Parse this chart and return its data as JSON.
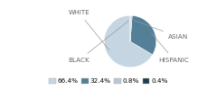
{
  "labels": [
    "WHITE",
    "HISPANIC",
    "ASIAN",
    "BLACK"
  ],
  "values": [
    66.4,
    32.4,
    0.8,
    0.4
  ],
  "colors": [
    "#c5d5e2",
    "#537f97",
    "#b8c8d4",
    "#1e3d50"
  ],
  "legend_labels": [
    "66.4%",
    "32.4%",
    "0.8%",
    "0.4%"
  ],
  "startangle": 90,
  "figsize": [
    2.4,
    1.0
  ],
  "dpi": 100,
  "label_fontsize": 5.2,
  "legend_fontsize": 5.2,
  "label_color": "#666666",
  "line_color": "#999999"
}
